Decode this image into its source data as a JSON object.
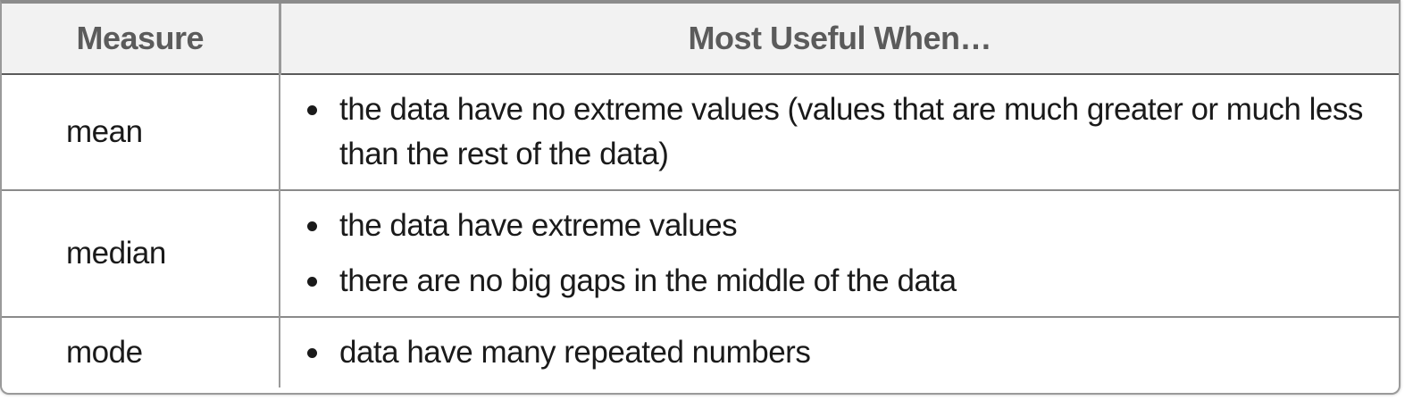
{
  "table": {
    "headers": {
      "measure": "Measure",
      "useful": "Most Useful When…"
    },
    "rows": [
      {
        "measure": "mean",
        "bullets": [
          "the data have no extreme values (values that are much greater or much less than the rest of the data)"
        ]
      },
      {
        "measure": "median",
        "bullets": [
          "the data have extreme values",
          "there are no big gaps in the middle of the data"
        ]
      },
      {
        "measure": "mode",
        "bullets": [
          "data have many repeated numbers"
        ]
      }
    ]
  }
}
